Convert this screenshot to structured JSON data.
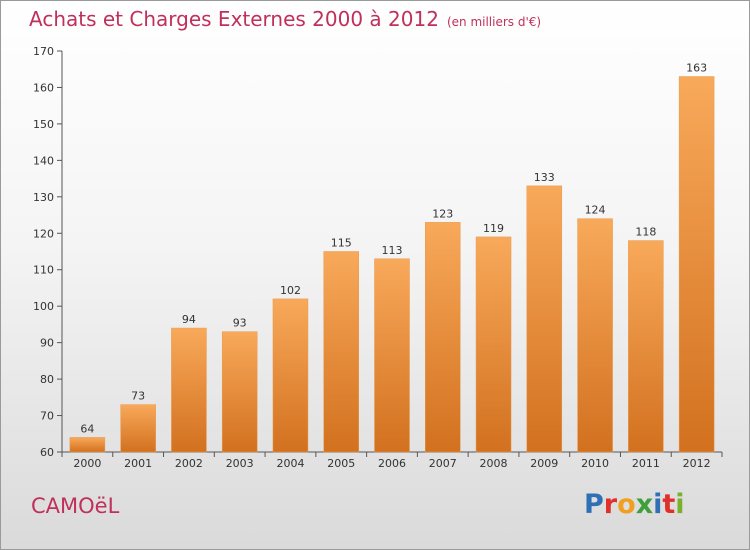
{
  "title": "Achats et Charges Externes 2000 à 2012",
  "subtitle": "(en milliers d'€)",
  "commune": "CAMOëL",
  "logo": {
    "letters": [
      {
        "char": "P",
        "color": "#2f6fb5"
      },
      {
        "char": "r",
        "color": "#e0302a"
      },
      {
        "char": "o",
        "color": "#f0a020"
      },
      {
        "char": "x",
        "color": "#3f9f3a"
      },
      {
        "char": "i",
        "color": "#2f6fb5"
      },
      {
        "char": "t",
        "color": "#e0302a"
      },
      {
        "char": "i",
        "color": "#7ab030"
      }
    ]
  },
  "colors": {
    "title": "#c0305a",
    "bar_top": "#f8a95a",
    "bar_bottom": "#d2711f",
    "axis": "#555555"
  },
  "chart_data": {
    "type": "bar",
    "title": "Achats et Charges Externes 2000 à 2012",
    "subtitle": "(en milliers d'€)",
    "xlabel": "",
    "ylabel": "",
    "categories": [
      "2000",
      "2001",
      "2002",
      "2003",
      "2004",
      "2005",
      "2006",
      "2007",
      "2008",
      "2009",
      "2010",
      "2011",
      "2012"
    ],
    "values": [
      64,
      73,
      94,
      93,
      102,
      115,
      113,
      123,
      119,
      133,
      124,
      118,
      163
    ],
    "ylim": [
      60,
      170
    ],
    "yticks": [
      60,
      70,
      80,
      90,
      100,
      110,
      120,
      130,
      140,
      150,
      160,
      170
    ],
    "grid": false,
    "data_labels": true
  }
}
